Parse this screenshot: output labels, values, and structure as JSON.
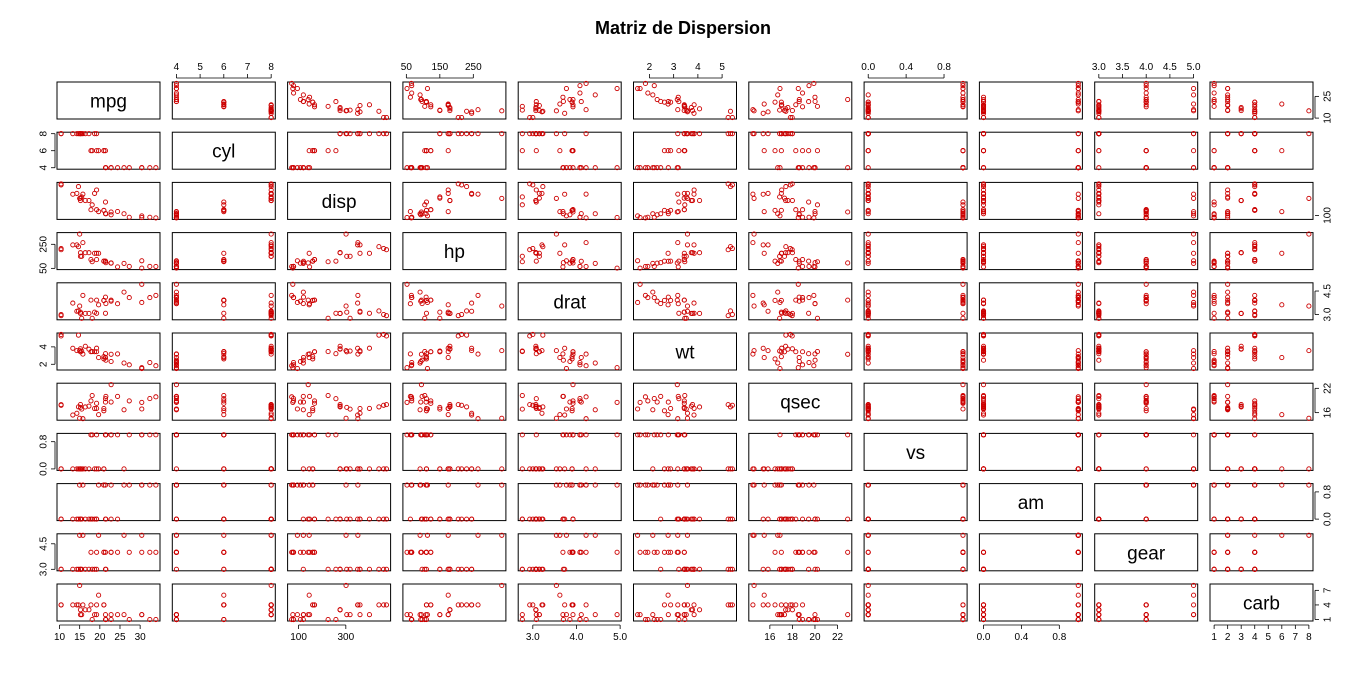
{
  "title": "Matriz de Dispersion",
  "chart_data": {
    "type": "scatter",
    "matrix": true,
    "title": "Matriz de Dispersion",
    "point_style": "open-circle",
    "point_color": "#cc0000",
    "grid": false,
    "legend": "none",
    "variables": [
      {
        "name": "mpg",
        "range": [
          10.4,
          33.9
        ],
        "ticks": [
          "10",
          "15",
          "20",
          "25",
          "30"
        ],
        "ticks_side": "bottom",
        "alt_ticks": [
          "10",
          "25"
        ],
        "alt_side": "right"
      },
      {
        "name": "cyl",
        "range": [
          4,
          8
        ],
        "ticks": [
          "4",
          "5",
          "6",
          "7",
          "8"
        ],
        "ticks_side": "top",
        "alt_ticks": [
          "4",
          "6",
          "8"
        ],
        "alt_side": "left"
      },
      {
        "name": "disp",
        "range": [
          71.1,
          472
        ],
        "ticks": [
          "100",
          "300"
        ],
        "ticks_side": "bottom",
        "alt_ticks": [
          "100"
        ],
        "alt_side": "right"
      },
      {
        "name": "hp",
        "range": [
          52,
          335
        ],
        "ticks": [
          "50",
          "150",
          "250"
        ],
        "ticks_side": "top",
        "alt_ticks": [
          "50",
          "250"
        ],
        "alt_side": "left"
      },
      {
        "name": "drat",
        "range": [
          2.76,
          4.93
        ],
        "ticks": [
          "3.0",
          "4.0",
          "5.0"
        ],
        "ticks_side": "bottom",
        "alt_ticks": [
          "3.0",
          "4.5"
        ],
        "alt_side": "right"
      },
      {
        "name": "wt",
        "range": [
          1.513,
          5.424
        ],
        "ticks": [
          "2",
          "3",
          "4",
          "5"
        ],
        "ticks_side": "top",
        "alt_ticks": [
          "2",
          "4"
        ],
        "alt_side": "left"
      },
      {
        "name": "qsec",
        "range": [
          14.5,
          22.9
        ],
        "ticks": [
          "16",
          "18",
          "20",
          "22"
        ],
        "ticks_side": "bottom",
        "alt_ticks": [
          "16",
          "22"
        ],
        "alt_side": "right"
      },
      {
        "name": "vs",
        "range": [
          0,
          1
        ],
        "ticks": [
          "0.0",
          "0.4",
          "0.8"
        ],
        "ticks_side": "top",
        "alt_ticks": [
          "0.0",
          "0.8"
        ],
        "alt_side": "left"
      },
      {
        "name": "am",
        "range": [
          0,
          1
        ],
        "ticks": [
          "0.0",
          "0.4",
          "0.8"
        ],
        "ticks_side": "bottom",
        "alt_ticks": [
          "0.0",
          "0.8"
        ],
        "alt_side": "right"
      },
      {
        "name": "gear",
        "range": [
          3,
          5
        ],
        "ticks": [
          "3.0",
          "3.5",
          "4.0",
          "4.5",
          "5.0"
        ],
        "ticks_side": "top",
        "alt_ticks": [
          "3.0",
          "4.5"
        ],
        "alt_side": "left"
      },
      {
        "name": "carb",
        "range": [
          1,
          8
        ],
        "ticks": [
          "1",
          "2",
          "3",
          "4",
          "5",
          "6",
          "7",
          "8"
        ],
        "ticks_side": "bottom",
        "alt_ticks": [
          "1",
          "4",
          "7"
        ],
        "alt_side": "right"
      }
    ],
    "observations": [
      [
        21.0,
        6,
        160.0,
        110,
        3.9,
        2.62,
        16.46,
        0,
        1,
        4,
        4
      ],
      [
        21.0,
        6,
        160.0,
        110,
        3.9,
        2.875,
        17.02,
        0,
        1,
        4,
        4
      ],
      [
        22.8,
        4,
        108.0,
        93,
        3.85,
        2.32,
        18.61,
        1,
        1,
        4,
        1
      ],
      [
        21.4,
        6,
        258.0,
        110,
        3.08,
        3.215,
        19.44,
        1,
        0,
        3,
        1
      ],
      [
        18.7,
        8,
        360.0,
        175,
        3.15,
        3.44,
        17.02,
        0,
        0,
        3,
        2
      ],
      [
        18.1,
        6,
        225.0,
        105,
        2.76,
        3.46,
        20.22,
        1,
        0,
        3,
        1
      ],
      [
        14.3,
        8,
        360.0,
        245,
        3.21,
        3.57,
        15.84,
        0,
        0,
        3,
        4
      ],
      [
        24.4,
        4,
        146.7,
        62,
        3.69,
        3.19,
        20.0,
        1,
        0,
        4,
        2
      ],
      [
        22.8,
        4,
        140.8,
        95,
        3.92,
        3.15,
        22.9,
        1,
        0,
        4,
        2
      ],
      [
        19.2,
        6,
        167.6,
        123,
        3.92,
        3.44,
        18.3,
        1,
        0,
        4,
        4
      ],
      [
        17.8,
        6,
        167.6,
        123,
        3.92,
        3.44,
        18.9,
        1,
        0,
        4,
        4
      ],
      [
        16.4,
        8,
        275.8,
        180,
        3.07,
        4.07,
        17.4,
        0,
        0,
        3,
        3
      ],
      [
        17.3,
        8,
        275.8,
        180,
        3.07,
        3.73,
        17.6,
        0,
        0,
        3,
        3
      ],
      [
        15.2,
        8,
        275.8,
        180,
        3.07,
        3.78,
        18.0,
        0,
        0,
        3,
        3
      ],
      [
        10.4,
        8,
        472.0,
        205,
        2.93,
        5.25,
        17.98,
        0,
        0,
        3,
        4
      ],
      [
        10.4,
        8,
        460.0,
        215,
        3.0,
        5.424,
        17.82,
        0,
        0,
        3,
        4
      ],
      [
        14.7,
        8,
        440.0,
        230,
        3.23,
        5.345,
        17.42,
        0,
        0,
        3,
        4
      ],
      [
        32.4,
        4,
        78.7,
        66,
        4.08,
        2.2,
        19.47,
        1,
        1,
        4,
        1
      ],
      [
        30.4,
        4,
        75.7,
        52,
        4.93,
        1.615,
        18.52,
        1,
        1,
        4,
        2
      ],
      [
        33.9,
        4,
        71.1,
        65,
        4.22,
        1.835,
        19.9,
        1,
        1,
        4,
        1
      ],
      [
        21.5,
        4,
        120.1,
        97,
        3.7,
        2.465,
        20.01,
        1,
        0,
        3,
        1
      ],
      [
        15.5,
        8,
        318.0,
        150,
        2.76,
        3.52,
        16.87,
        0,
        0,
        3,
        2
      ],
      [
        15.2,
        8,
        304.0,
        150,
        3.15,
        3.435,
        17.3,
        0,
        0,
        3,
        2
      ],
      [
        13.3,
        8,
        350.0,
        245,
        3.73,
        3.84,
        15.41,
        0,
        0,
        3,
        4
      ],
      [
        19.2,
        8,
        400.0,
        175,
        3.08,
        3.845,
        17.05,
        0,
        0,
        3,
        2
      ],
      [
        27.3,
        4,
        79.0,
        66,
        4.08,
        1.935,
        18.9,
        1,
        1,
        4,
        1
      ],
      [
        26.0,
        4,
        120.3,
        91,
        4.43,
        2.14,
        16.7,
        0,
        1,
        5,
        2
      ],
      [
        30.4,
        4,
        95.1,
        113,
        3.77,
        1.513,
        16.9,
        1,
        1,
        5,
        2
      ],
      [
        15.8,
        8,
        351.0,
        264,
        4.22,
        3.17,
        14.5,
        0,
        1,
        5,
        4
      ],
      [
        19.7,
        6,
        145.0,
        175,
        3.62,
        2.77,
        15.5,
        0,
        1,
        5,
        6
      ],
      [
        15.0,
        8,
        301.0,
        335,
        3.54,
        3.57,
        14.6,
        0,
        1,
        5,
        8
      ],
      [
        21.4,
        4,
        121.0,
        109,
        4.11,
        2.78,
        18.6,
        1,
        1,
        4,
        2
      ]
    ]
  }
}
